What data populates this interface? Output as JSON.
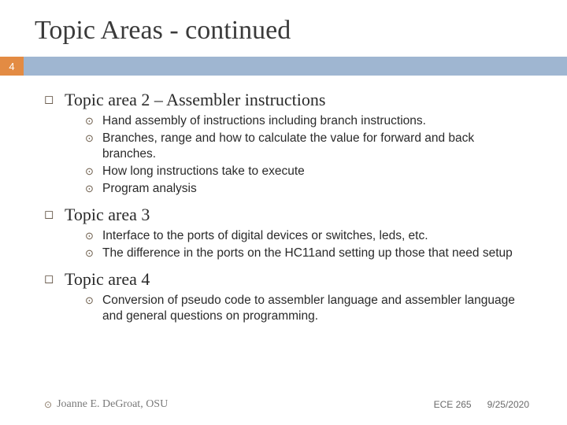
{
  "title": "Topic Areas - continued",
  "page_number": "4",
  "topics": [
    {
      "heading": "Topic area 2 – Assembler instructions",
      "items": [
        "Hand assembly of instructions including branch instructions.",
        "Branches, range and how to calculate the value for forward and back branches.",
        "How long instructions take to execute",
        "Program analysis"
      ]
    },
    {
      "heading": "Topic area 3",
      "items": [
        "Interface to the ports of digital devices or switches, leds, etc.",
        "The difference in the ports on the HC11and setting up those that need setup"
      ]
    },
    {
      "heading": "Topic area 4",
      "items": [
        "Conversion of pseudo code to assembler language and assembler language and general questions on programming."
      ]
    }
  ],
  "footer": {
    "copyright": "Joanne E. DeGroat, OSU",
    "course": "ECE 265",
    "date": "9/25/2020"
  },
  "colors": {
    "accent_orange": "#e38b43",
    "accent_blue": "#9fb6d1"
  }
}
